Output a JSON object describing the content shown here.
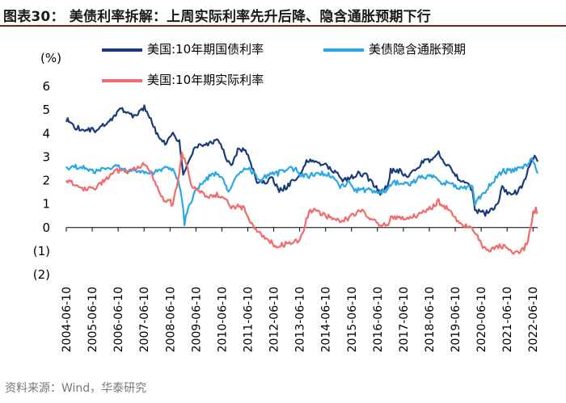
{
  "header": {
    "title": "图表30： 美债利率拆解：上周实际利率先升后降、隐含通胀预期下行"
  },
  "source": "资料来源：Wind，华泰研究",
  "colors": {
    "nominal": "#1a3a7a",
    "breakeven": "#2aa8e6",
    "real": "#f26a6a",
    "title_rule": "#8b1a1a"
  },
  "chart_data": {
    "type": "line",
    "unit_label": "(%)",
    "ylim": [
      -2,
      6
    ],
    "y_ticks": [
      6,
      5,
      4,
      3,
      2,
      1,
      0,
      -1,
      -2
    ],
    "y_tick_labels": [
      "6",
      "5",
      "4",
      "3",
      "2",
      "1",
      "0",
      "(1)",
      "(2)"
    ],
    "x_range": [
      2004.44,
      2022.62
    ],
    "x_tick_labels": [
      "2004-06-10",
      "2005-06-10",
      "2006-06-10",
      "2007-06-10",
      "2008-06-10",
      "2009-06-10",
      "2010-06-10",
      "2011-06-10",
      "2012-06-10",
      "2013-06-10",
      "2014-06-10",
      "2015-06-10",
      "2016-06-10",
      "2017-06-10",
      "2018-06-10",
      "2019-06-10",
      "2020-06-10",
      "2021-06-10",
      "2022-06-10"
    ],
    "x_tick_values": [
      2004.44,
      2005.44,
      2006.44,
      2007.44,
      2008.44,
      2009.44,
      2010.44,
      2011.44,
      2012.44,
      2013.44,
      2014.44,
      2015.44,
      2016.44,
      2017.44,
      2018.44,
      2019.44,
      2020.44,
      2021.44,
      2022.44
    ],
    "series": [
      {
        "name": "美国:10年期国债利率",
        "key": "nominal",
        "x": [
          2004.44,
          2004.7,
          2005.0,
          2005.3,
          2005.6,
          2005.9,
          2006.2,
          2006.5,
          2006.8,
          2007.1,
          2007.45,
          2007.7,
          2008.0,
          2008.3,
          2008.5,
          2008.8,
          2008.95,
          2009.1,
          2009.4,
          2009.7,
          2010.0,
          2010.3,
          2010.6,
          2010.8,
          2011.1,
          2011.4,
          2011.6,
          2011.8,
          2012.0,
          2012.4,
          2012.6,
          2012.9,
          2013.2,
          2013.4,
          2013.7,
          2013.95,
          2014.2,
          2014.5,
          2014.8,
          2015.1,
          2015.4,
          2015.7,
          2016.0,
          2016.3,
          2016.55,
          2016.8,
          2016.95,
          2017.3,
          2017.6,
          2017.9,
          2018.2,
          2018.5,
          2018.8,
          2019.0,
          2019.3,
          2019.6,
          2019.9,
          2020.1,
          2020.2,
          2020.4,
          2020.6,
          2020.9,
          2021.1,
          2021.25,
          2021.5,
          2021.8,
          2022.0,
          2022.2,
          2022.45,
          2022.55,
          2022.62
        ],
        "values": [
          4.6,
          4.3,
          4.2,
          4.2,
          4.1,
          4.4,
          4.6,
          5.1,
          4.8,
          4.7,
          5.1,
          4.6,
          3.8,
          3.5,
          4.0,
          3.7,
          2.3,
          2.6,
          3.4,
          3.5,
          3.6,
          3.8,
          3.0,
          2.6,
          3.4,
          3.2,
          2.5,
          2.0,
          1.9,
          2.1,
          1.6,
          1.7,
          2.0,
          2.2,
          2.8,
          2.9,
          2.7,
          2.6,
          2.4,
          2.0,
          2.1,
          2.3,
          2.2,
          1.8,
          1.5,
          1.7,
          2.4,
          2.4,
          2.2,
          2.4,
          2.8,
          2.9,
          3.2,
          2.7,
          2.5,
          2.0,
          1.9,
          1.6,
          0.7,
          0.7,
          0.6,
          0.8,
          1.1,
          1.7,
          1.4,
          1.5,
          1.7,
          2.3,
          3.0,
          3.0,
          2.8
        ]
      },
      {
        "name": "美债隐含通胀预期",
        "key": "breakeven",
        "x": [
          2004.44,
          2004.8,
          2005.2,
          2005.6,
          2006.0,
          2006.4,
          2006.8,
          2007.2,
          2007.6,
          2008.0,
          2008.3,
          2008.55,
          2008.75,
          2008.9,
          2009.0,
          2009.2,
          2009.5,
          2009.8,
          2010.1,
          2010.4,
          2010.7,
          2011.0,
          2011.4,
          2011.7,
          2011.9,
          2012.3,
          2012.6,
          2013.0,
          2013.3,
          2013.5,
          2013.8,
          2014.2,
          2014.5,
          2014.8,
          2015.0,
          2015.3,
          2015.6,
          2015.9,
          2016.2,
          2016.5,
          2016.8,
          2017.0,
          2017.4,
          2017.7,
          2018.0,
          2018.4,
          2018.7,
          2018.95,
          2019.2,
          2019.6,
          2019.9,
          2020.1,
          2020.2,
          2020.4,
          2020.7,
          2021.0,
          2021.3,
          2021.6,
          2021.9,
          2022.1,
          2022.25,
          2022.4,
          2022.5,
          2022.62
        ],
        "values": [
          2.5,
          2.6,
          2.5,
          2.4,
          2.5,
          2.6,
          2.4,
          2.4,
          2.3,
          2.4,
          2.5,
          2.4,
          2.0,
          1.2,
          0.2,
          1.0,
          1.7,
          2.0,
          2.3,
          2.2,
          1.6,
          2.2,
          2.5,
          2.3,
          2.0,
          2.3,
          2.3,
          2.5,
          2.5,
          2.2,
          2.2,
          2.3,
          2.3,
          2.1,
          1.7,
          1.9,
          1.6,
          1.6,
          1.6,
          1.5,
          1.6,
          1.9,
          1.9,
          1.8,
          2.1,
          2.2,
          2.1,
          1.9,
          1.9,
          1.7,
          1.7,
          1.7,
          1.0,
          1.3,
          1.7,
          2.1,
          2.4,
          2.4,
          2.5,
          2.6,
          2.7,
          3.0,
          2.7,
          2.3
        ]
      },
      {
        "name": "美国:10年期实际利率",
        "key": "real",
        "x": [
          2004.44,
          2004.8,
          2005.2,
          2005.6,
          2006.0,
          2006.4,
          2006.8,
          2007.2,
          2007.45,
          2007.7,
          2008.0,
          2008.2,
          2008.4,
          2008.55,
          2008.65,
          2008.8,
          2008.9,
          2009.1,
          2009.3,
          2009.6,
          2009.9,
          2010.2,
          2010.5,
          2010.8,
          2011.0,
          2011.3,
          2011.6,
          2011.8,
          2012.0,
          2012.3,
          2012.6,
          2012.9,
          2013.2,
          2013.45,
          2013.65,
          2013.8,
          2014.1,
          2014.4,
          2014.7,
          2015.0,
          2015.3,
          2015.6,
          2015.9,
          2016.2,
          2016.5,
          2016.8,
          2017.0,
          2017.3,
          2017.6,
          2017.9,
          2018.2,
          2018.5,
          2018.8,
          2019.0,
          2019.3,
          2019.6,
          2019.9,
          2020.1,
          2020.15,
          2020.3,
          2020.5,
          2020.8,
          2021.0,
          2021.3,
          2021.6,
          2021.9,
          2022.1,
          2022.25,
          2022.35,
          2022.45,
          2022.55,
          2022.62
        ],
        "values": [
          2.0,
          1.8,
          1.6,
          1.7,
          2.1,
          2.4,
          2.4,
          2.5,
          2.7,
          2.3,
          1.6,
          1.1,
          1.2,
          0.9,
          1.5,
          2.3,
          3.1,
          2.6,
          1.7,
          1.5,
          1.3,
          1.4,
          1.3,
          0.8,
          0.9,
          0.8,
          0.1,
          -0.1,
          -0.3,
          -0.6,
          -0.8,
          -0.7,
          -0.6,
          -0.5,
          0.1,
          0.7,
          0.7,
          0.5,
          0.4,
          0.3,
          0.4,
          0.6,
          0.7,
          0.4,
          0.1,
          0.1,
          0.5,
          0.4,
          0.4,
          0.5,
          0.7,
          0.8,
          1.1,
          0.9,
          0.7,
          0.2,
          0.1,
          0.0,
          -0.2,
          -0.4,
          -0.9,
          -1.0,
          -0.8,
          -0.8,
          -1.0,
          -1.1,
          -0.9,
          -0.5,
          0.0,
          0.6,
          0.8,
          0.6
        ]
      }
    ]
  }
}
